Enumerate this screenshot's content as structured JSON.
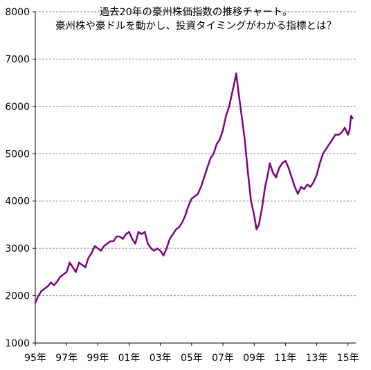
{
  "chart_data": {
    "type": "line",
    "title_lines": [
      "過去20年の豪州株価指数の推移チャート。",
      "豪州株や豪ドルを動かし、投資タイミングがわかる指標とは？"
    ],
    "xlabel": "",
    "ylabel": "",
    "ylim": [
      1000,
      8000
    ],
    "xlim": [
      1995,
      2015.5
    ],
    "y_ticks": [
      1000,
      2000,
      3000,
      4000,
      5000,
      6000,
      7000,
      8000
    ],
    "x_ticks": [
      {
        "x": 1995,
        "label": "95年"
      },
      {
        "x": 1997,
        "label": "97年"
      },
      {
        "x": 1999,
        "label": "99年"
      },
      {
        "x": 2001,
        "label": "01年"
      },
      {
        "x": 2003,
        "label": "03年"
      },
      {
        "x": 2005,
        "label": "05年"
      },
      {
        "x": 2007,
        "label": "07年"
      },
      {
        "x": 2009,
        "label": "09年"
      },
      {
        "x": 2011,
        "label": "11年"
      },
      {
        "x": 2013,
        "label": "13年"
      },
      {
        "x": 2015,
        "label": "15年"
      }
    ],
    "grid": "horizontal-dashed",
    "line_color": "#800080",
    "series": [
      {
        "x": [
          1995.0,
          1995.2,
          1995.4,
          1995.6,
          1995.8,
          1996.0,
          1996.2,
          1996.4,
          1996.6,
          1996.8,
          1997.0,
          1997.2,
          1997.4,
          1997.6,
          1997.8,
          1998.0,
          1998.2,
          1998.4,
          1998.6,
          1998.8,
          1999.0,
          1999.2,
          1999.4,
          1999.6,
          1999.8,
          2000.0,
          2000.2,
          2000.4,
          2000.6,
          2000.8,
          2001.0,
          2001.2,
          2001.4,
          2001.6,
          2001.8,
          2002.0,
          2002.2,
          2002.4,
          2002.6,
          2002.8,
          2003.0,
          2003.2,
          2003.4,
          2003.6,
          2003.8,
          2004.0,
          2004.2,
          2004.4,
          2004.6,
          2004.8,
          2005.0,
          2005.2,
          2005.4,
          2005.6,
          2005.8,
          2006.0,
          2006.2,
          2006.4,
          2006.6,
          2006.8,
          2007.0,
          2007.2,
          2007.4,
          2007.6,
          2007.8,
          2007.85,
          2008.0,
          2008.2,
          2008.4,
          2008.6,
          2008.8,
          2009.0,
          2009.15,
          2009.3,
          2009.5,
          2009.7,
          2009.9,
          2010.0,
          2010.2,
          2010.4,
          2010.6,
          2010.8,
          2011.0,
          2011.2,
          2011.4,
          2011.6,
          2011.8,
          2012.0,
          2012.2,
          2012.4,
          2012.6,
          2012.8,
          2013.0,
          2013.2,
          2013.4,
          2013.6,
          2013.8,
          2014.0,
          2014.2,
          2014.4,
          2014.6,
          2014.8,
          2015.0,
          2015.1,
          2015.2,
          2015.3
        ],
        "y": [
          1850,
          2000,
          2100,
          2150,
          2200,
          2280,
          2220,
          2300,
          2400,
          2450,
          2500,
          2700,
          2600,
          2500,
          2700,
          2650,
          2600,
          2800,
          2900,
          3050,
          3000,
          2950,
          3050,
          3100,
          3150,
          3150,
          3250,
          3250,
          3200,
          3300,
          3350,
          3200,
          3100,
          3350,
          3300,
          3350,
          3100,
          3000,
          2950,
          3000,
          2950,
          2850,
          3000,
          3200,
          3300,
          3400,
          3450,
          3550,
          3700,
          3900,
          4050,
          4100,
          4150,
          4300,
          4500,
          4700,
          4900,
          5000,
          5200,
          5300,
          5500,
          5800,
          6000,
          6300,
          6600,
          6700,
          6300,
          5800,
          5300,
          4600,
          4000,
          3700,
          3400,
          3500,
          3850,
          4300,
          4600,
          4800,
          4600,
          4500,
          4700,
          4800,
          4850,
          4700,
          4500,
          4300,
          4150,
          4300,
          4250,
          4350,
          4300,
          4400,
          4550,
          4800,
          5000,
          5100,
          5200,
          5300,
          5400,
          5400,
          5450,
          5550,
          5400,
          5500,
          5800,
          5750
        ]
      }
    ]
  }
}
